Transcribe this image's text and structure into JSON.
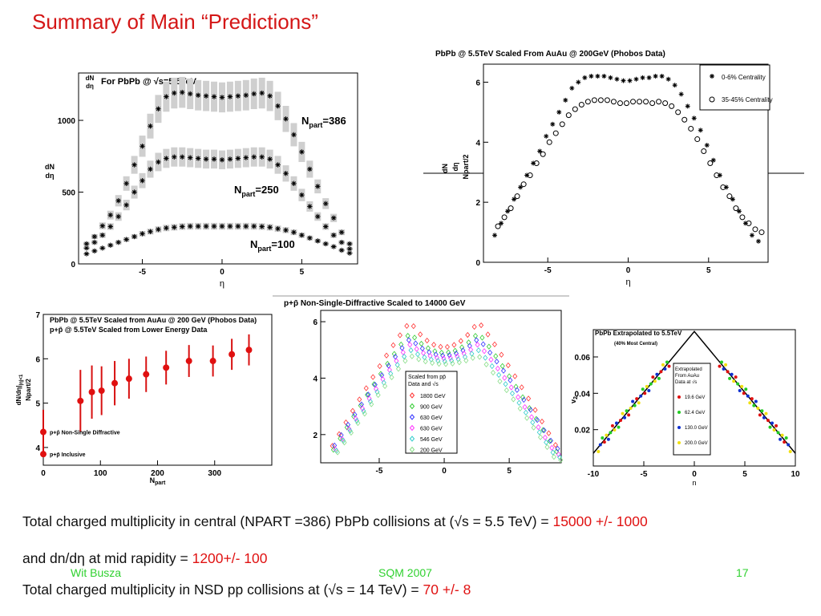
{
  "slide": {
    "title": "Summary of Main “Predictions”",
    "footer": {
      "author": "Wit Busza",
      "conference": "SQM 2007",
      "page": "17"
    },
    "summary": {
      "line1_text": "Total charged multiplicity in central (NPART =386) PbPb collisions at (√s = 5.5 TeV) = ",
      "line1_value": "15000 +/- 1000",
      "line2_text": "and dn/dη  at mid rapidity = ",
      "line2_value": "1200+/- 100",
      "line3_text": "Total charged multiplicity in NSD pp collisions at (√s = 14 TeV) = ",
      "line3_value": "70 +/- 8"
    }
  },
  "chart_data": [
    {
      "id": "p1",
      "type": "scatter",
      "title_prefix": "For PbPb @ ",
      "title_sqrt": "√s=5.5TeV",
      "ylabel_top": "dN",
      "ylabel_bottom": "dη",
      "xlabel": "η",
      "xlim": [
        -9,
        8.5
      ],
      "ylim": [
        0,
        1330
      ],
      "xticks": [
        -5,
        0,
        5
      ],
      "yticks": [
        0,
        500,
        1000
      ],
      "grid": false,
      "series": [
        {
          "name": "Npart=386",
          "label_main": "N",
          "label_sub": "part",
          "label_val": "=386",
          "x": [
            -8.5,
            -8,
            -7.5,
            -7,
            -6.5,
            -6,
            -5.5,
            -5,
            -4.5,
            -4,
            -3.5,
            -3,
            -2.5,
            -2,
            -1.5,
            -1,
            -0.5,
            0,
            0.5,
            1,
            1.5,
            2,
            2.5,
            3,
            3.5,
            4,
            4.5,
            5,
            5.5,
            6,
            6.5,
            7,
            7.5,
            8
          ],
          "y": [
            140,
            190,
            265,
            340,
            440,
            560,
            690,
            820,
            960,
            1080,
            1165,
            1190,
            1195,
            1185,
            1175,
            1170,
            1165,
            1160,
            1165,
            1170,
            1175,
            1185,
            1190,
            1170,
            1100,
            1010,
            900,
            780,
            660,
            540,
            420,
            320,
            220,
            140
          ]
        },
        {
          "name": "Npart=250",
          "label_main": "N",
          "label_sub": "part",
          "label_val": "=250",
          "x": [
            -8.5,
            -8,
            -7.5,
            -7,
            -6.5,
            -6,
            -5.5,
            -5,
            -4.5,
            -4,
            -3.5,
            -3,
            -2.5,
            -2,
            -1.5,
            -1,
            -0.5,
            0,
            0.5,
            1,
            1.5,
            2,
            2.5,
            3,
            3.5,
            4,
            4.5,
            5,
            5.5,
            6,
            6.5,
            7,
            7.5,
            8
          ],
          "y": [
            110,
            150,
            200,
            260,
            330,
            410,
            500,
            580,
            660,
            710,
            735,
            745,
            745,
            740,
            735,
            730,
            730,
            725,
            730,
            735,
            740,
            745,
            745,
            730,
            690,
            630,
            560,
            480,
            400,
            330,
            260,
            200,
            150,
            105
          ]
        },
        {
          "name": "Npart=100",
          "label_main": "N",
          "label_sub": "part",
          "label_val": "=100",
          "x": [
            -8.5,
            -8,
            -7.5,
            -7,
            -6.5,
            -6,
            -5.5,
            -5,
            -4.5,
            -4,
            -3.5,
            -3,
            -2.5,
            -2,
            -1.5,
            -1,
            -0.5,
            0,
            0.5,
            1,
            1.5,
            2,
            2.5,
            3,
            3.5,
            4,
            4.5,
            5,
            5.5,
            6,
            6.5,
            7,
            7.5,
            8
          ],
          "y": [
            70,
            90,
            110,
            130,
            150,
            170,
            190,
            210,
            225,
            240,
            250,
            255,
            260,
            262,
            262,
            262,
            262,
            262,
            262,
            262,
            262,
            262,
            260,
            255,
            245,
            235,
            220,
            200,
            180,
            160,
            140,
            120,
            95,
            75
          ]
        }
      ]
    },
    {
      "id": "p2",
      "type": "scatter",
      "title": "PbPb @ 5.5TeV Scaled From AuAu @ 200GeV (Phobos Data)",
      "ylabel_top": "dN",
      "ylabel_mid": "dη",
      "ylabel_bottom": "Npart/2",
      "xlabel": "η",
      "xlim": [
        -9,
        8.7
      ],
      "ylim": [
        0,
        6.6
      ],
      "xticks": [
        -5,
        0,
        5
      ],
      "yticks": [
        0,
        2,
        4,
        6
      ],
      "legend_position": "top-right",
      "series": [
        {
          "name": "0-6% Centrality",
          "x": [
            -8.3,
            -7.9,
            -7.5,
            -7.1,
            -6.7,
            -6.3,
            -5.9,
            -5.5,
            -5.1,
            -4.7,
            -4.3,
            -3.9,
            -3.5,
            -3.1,
            -2.7,
            -2.3,
            -1.9,
            -1.5,
            -1.1,
            -0.7,
            -0.3,
            0.1,
            0.5,
            0.9,
            1.3,
            1.7,
            2.1,
            2.5,
            2.9,
            3.3,
            3.7,
            4.1,
            4.5,
            4.9,
            5.3,
            5.7,
            6.1,
            6.5,
            6.9,
            7.3,
            7.7,
            8.1
          ],
          "y": [
            0.9,
            1.3,
            1.7,
            2.1,
            2.5,
            2.9,
            3.3,
            3.7,
            4.2,
            4.6,
            5.0,
            5.4,
            5.8,
            6.0,
            6.15,
            6.2,
            6.2,
            6.2,
            6.15,
            6.1,
            6.05,
            6.05,
            6.1,
            6.15,
            6.15,
            6.2,
            6.2,
            6.1,
            5.9,
            5.6,
            5.2,
            4.8,
            4.4,
            3.9,
            3.4,
            2.9,
            2.5,
            2.1,
            1.7,
            1.3,
            0.9,
            0.7
          ]
        },
        {
          "name": "35-45% Centrality",
          "x": [
            -8.1,
            -7.7,
            -7.3,
            -6.9,
            -6.5,
            -6.1,
            -5.7,
            -5.3,
            -4.9,
            -4.5,
            -4.1,
            -3.7,
            -3.3,
            -2.9,
            -2.5,
            -2.1,
            -1.7,
            -1.3,
            -0.9,
            -0.5,
            -0.1,
            0.3,
            0.7,
            1.1,
            1.5,
            1.9,
            2.3,
            2.7,
            3.1,
            3.5,
            3.9,
            4.3,
            4.7,
            5.1,
            5.5,
            5.9,
            6.3,
            6.7,
            7.1,
            7.5,
            7.9,
            8.3
          ],
          "y": [
            1.2,
            1.5,
            1.8,
            2.2,
            2.6,
            2.9,
            3.3,
            3.6,
            4.0,
            4.3,
            4.6,
            4.9,
            5.1,
            5.25,
            5.35,
            5.4,
            5.4,
            5.4,
            5.35,
            5.3,
            5.3,
            5.35,
            5.35,
            5.35,
            5.3,
            5.35,
            5.3,
            5.2,
            5.0,
            4.75,
            4.45,
            4.1,
            3.7,
            3.3,
            2.9,
            2.5,
            2.2,
            1.8,
            1.5,
            1.3,
            1.1,
            1.0
          ]
        }
      ]
    },
    {
      "id": "p3",
      "type": "scatter",
      "title_line1": "PbPb @ 5.5TeV Scaled from AuAu @ 200 GeV (Phobos Data)",
      "title_line2": "p+p̄ @ 5.5TeV Scaled from Lower Energy Data",
      "ylabel_top": "dN/dη|",
      "ylabel_sub": "|η|<1",
      "ylabel_bottom": "Npart/2",
      "xlabel_main": "N",
      "xlabel_sub": "part",
      "xlim": [
        0,
        400
      ],
      "ylim": [
        3.6,
        7
      ],
      "xticks": [
        0,
        100,
        200,
        300
      ],
      "yticks": [
        4,
        5,
        6,
        7
      ],
      "series": [
        {
          "name": "PbPb",
          "x": [
            65,
            85,
            102,
            125,
            150,
            180,
            215,
            255,
            297,
            330,
            360
          ],
          "y": [
            5.05,
            5.25,
            5.28,
            5.45,
            5.55,
            5.65,
            5.8,
            5.95,
            5.95,
            6.1,
            6.2
          ],
          "err": [
            0.7,
            0.6,
            0.55,
            0.5,
            0.45,
            0.4,
            0.38,
            0.36,
            0.35,
            0.35,
            0.35
          ]
        },
        {
          "name": "p+p̄ Non-Single Diffractive",
          "x": [
            0
          ],
          "y": [
            4.35
          ],
          "err": [
            0.5
          ]
        },
        {
          "name": "p+p̄ Inclusive",
          "x": [
            0
          ],
          "y": [
            3.85
          ],
          "err": [
            0
          ]
        }
      ],
      "legend": [
        "p+p̄ Non-Single Diffractive",
        "p+p̄ Inclusive"
      ]
    },
    {
      "id": "p4",
      "type": "scatter",
      "title": "p+p̄ Non-Single-Diffractive Scaled to 14000 GeV",
      "xlim": [
        -9.5,
        9
      ],
      "ylim": [
        1,
        6.4
      ],
      "xticks": [
        -5,
        0,
        5
      ],
      "yticks": [
        2,
        4,
        6
      ],
      "legend_title_1": "Scaled from pp̄",
      "legend_title_2": "Data and √s",
      "legend_position": "center",
      "series": [
        {
          "name": "1800 GeV",
          "color": "#ff3333",
          "peak": 6.0,
          "mid": 5.1,
          "edge": 1.6
        },
        {
          "name": "900 GeV",
          "color": "#33cc33",
          "peak": 5.6,
          "mid": 4.9,
          "edge": 1.4
        },
        {
          "name": "630 GeV",
          "color": "#3333ff",
          "peak": 5.4,
          "mid": 4.8,
          "edge": 1.5
        },
        {
          "name": "630 GeV",
          "color": "#ff33ff",
          "peak": 5.2,
          "mid": 4.7,
          "edge": 1.3
        },
        {
          "name": "546 GeV",
          "color": "#33cccc",
          "peak": 5.0,
          "mid": 4.6,
          "edge": 1.2
        },
        {
          "name": "200 GeV",
          "color": "#88dd88",
          "peak": 4.8,
          "mid": 4.5,
          "edge": 1.1
        }
      ]
    },
    {
      "id": "p5",
      "type": "scatter",
      "title": "PbPb Extrapolated to 5.5TeV",
      "subtitle": "(40% Most Central)",
      "ylabel_main": "v",
      "ylabel_sub": "2",
      "xlabel": "η",
      "xlim": [
        -10,
        10
      ],
      "ylim": [
        0,
        0.075
      ],
      "xticks": [
        -10,
        -5,
        0,
        5,
        10
      ],
      "yticks": [
        0.02,
        0.04,
        0.06
      ],
      "legend_title": "Extrapolated From AuAu Data at √s",
      "legend_position": "center",
      "series": [
        {
          "name": "19.6 GeV",
          "color": "#e01010"
        },
        {
          "name": "62.4 GeV",
          "color": "#22cc22"
        },
        {
          "name": "130.0 GeV",
          "color": "#1030d0"
        },
        {
          "name": "200.0 GeV",
          "color": "#f0e010"
        }
      ],
      "triangle": {
        "x": [
          -10,
          0,
          10
        ],
        "y": [
          0.007,
          0.074,
          0.007
        ]
      }
    }
  ]
}
